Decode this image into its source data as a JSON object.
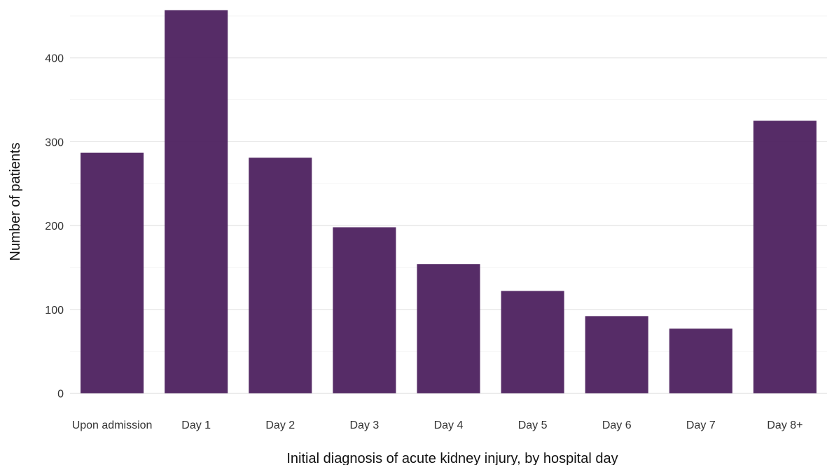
{
  "chart_data": {
    "type": "bar",
    "categories": [
      "Upon admission",
      "Day 1",
      "Day 2",
      "Day 3",
      "Day 4",
      "Day 5",
      "Day 6",
      "Day 7",
      "Day 8+"
    ],
    "values": [
      287,
      457,
      281,
      198,
      154,
      122,
      92,
      77,
      325
    ],
    "xlabel": "Initial diagnosis of acute kidney injury, by hospital day",
    "ylabel": "Number of patients",
    "ylim": [
      0,
      450
    ],
    "yticks": [
      0,
      100,
      200,
      300,
      400
    ],
    "grid": true,
    "legend": "none",
    "bar_color": "#4d215f"
  }
}
